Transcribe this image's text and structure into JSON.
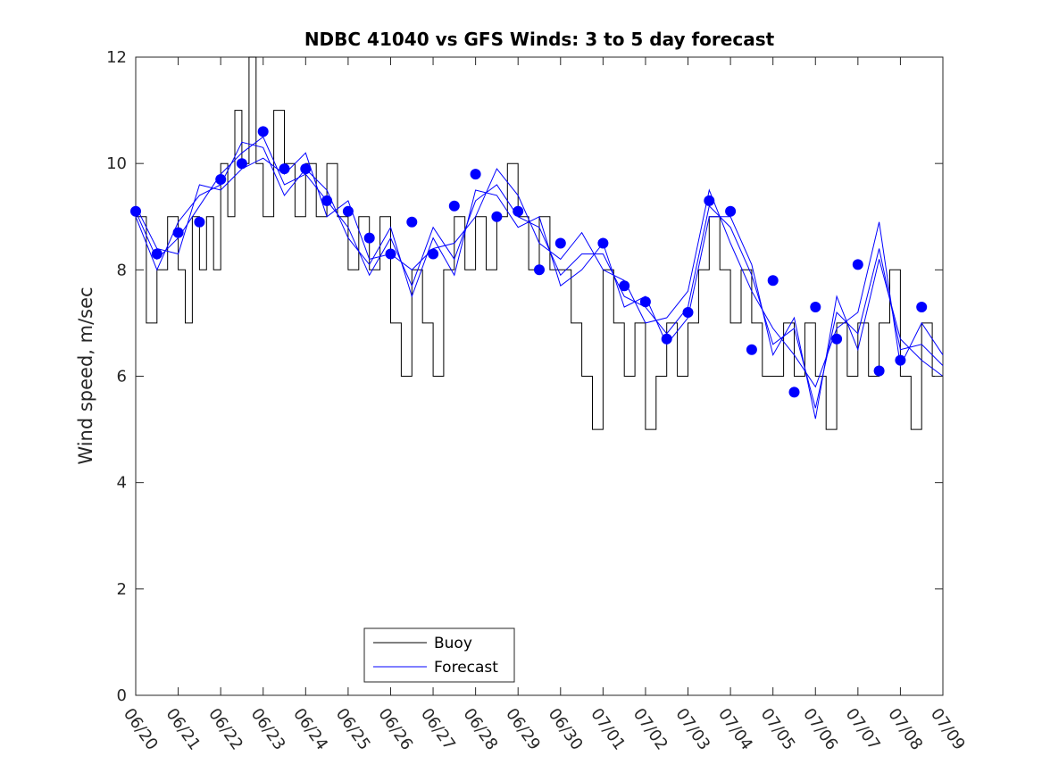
{
  "chart_data": {
    "type": "line",
    "title": "NDBC 41040 vs GFS Winds: 3 to 5 day forecast",
    "xlabel": "",
    "ylabel": "Wind speed, m/sec",
    "ylim": [
      0,
      12
    ],
    "yticks": [
      "0",
      "2",
      "4",
      "6",
      "8",
      "10",
      "12"
    ],
    "xlim": [
      "06/20",
      "07/09"
    ],
    "xticks": [
      "06/20",
      "06/21",
      "06/22",
      "06/23",
      "06/24",
      "06/25",
      "06/26",
      "06/27",
      "06/28",
      "06/29",
      "06/30",
      "07/01",
      "07/02",
      "07/03",
      "07/04",
      "07/05",
      "07/06",
      "07/07",
      "07/08",
      "07/09"
    ],
    "legend": {
      "location": "bottom-left",
      "entries": [
        "Buoy",
        "Forecast"
      ]
    },
    "colors": {
      "buoy": "#000000",
      "forecast": "#0000ff"
    },
    "series": [
      {
        "name": "Buoy",
        "kind": "line",
        "values": [
          [
            "06/20",
            9
          ],
          [
            "06/20",
            7
          ],
          [
            "06/20",
            8
          ],
          [
            "06/20",
            9
          ],
          [
            "06/21",
            8
          ],
          [
            "06/21",
            7
          ],
          [
            "06/21",
            9
          ],
          [
            "06/21",
            8
          ],
          [
            "06/21",
            9
          ],
          [
            "06/21",
            8
          ],
          [
            "06/22",
            10
          ],
          [
            "06/22",
            9
          ],
          [
            "06/22",
            11
          ],
          [
            "06/22",
            10
          ],
          [
            "06/22",
            12
          ],
          [
            "06/22",
            10
          ],
          [
            "06/23",
            9
          ],
          [
            "06/23",
            11
          ],
          [
            "06/23",
            10
          ],
          [
            "06/23",
            9
          ],
          [
            "06/24",
            10
          ],
          [
            "06/24",
            9
          ],
          [
            "06/24",
            10
          ],
          [
            "06/24",
            9
          ],
          [
            "06/25",
            8
          ],
          [
            "06/25",
            9
          ],
          [
            "06/25",
            8
          ],
          [
            "06/25",
            9
          ],
          [
            "06/26",
            7
          ],
          [
            "06/26",
            6
          ],
          [
            "06/26",
            8
          ],
          [
            "06/26",
            7
          ],
          [
            "06/27",
            6
          ],
          [
            "06/27",
            8
          ],
          [
            "06/27",
            9
          ],
          [
            "06/27",
            8
          ],
          [
            "06/28",
            9
          ],
          [
            "06/28",
            8
          ],
          [
            "06/28",
            9
          ],
          [
            "06/28",
            10
          ],
          [
            "06/29",
            9
          ],
          [
            "06/29",
            8
          ],
          [
            "06/29",
            9
          ],
          [
            "06/29",
            8
          ],
          [
            "06/30",
            8
          ],
          [
            "06/30",
            7
          ],
          [
            "06/30",
            6
          ],
          [
            "06/30",
            5
          ],
          [
            "07/01",
            8
          ],
          [
            "07/01",
            7
          ],
          [
            "07/01",
            6
          ],
          [
            "07/01",
            7
          ],
          [
            "07/02",
            5
          ],
          [
            "07/02",
            6
          ],
          [
            "07/02",
            7
          ],
          [
            "07/02",
            6
          ],
          [
            "07/03",
            7
          ],
          [
            "07/03",
            8
          ],
          [
            "07/03",
            9
          ],
          [
            "07/03",
            8
          ],
          [
            "07/04",
            7
          ],
          [
            "07/04",
            8
          ],
          [
            "07/04",
            7
          ],
          [
            "07/04",
            6
          ],
          [
            "07/05",
            6
          ],
          [
            "07/05",
            7
          ],
          [
            "07/05",
            6
          ],
          [
            "07/05",
            7
          ],
          [
            "07/06",
            6
          ],
          [
            "07/06",
            5
          ],
          [
            "07/06",
            7
          ],
          [
            "07/06",
            6
          ],
          [
            "07/07",
            7
          ],
          [
            "07/07",
            6
          ],
          [
            "07/07",
            7
          ],
          [
            "07/07",
            8
          ],
          [
            "07/08",
            6
          ],
          [
            "07/08",
            5
          ],
          [
            "07/08",
            7
          ],
          [
            "07/08",
            6
          ],
          [
            "07/09",
            6
          ]
        ]
      },
      {
        "name": "Forecast",
        "kind": "line",
        "runs": [
          [
            [
              "06/20",
              9.1
            ],
            [
              "06/20",
              8.2
            ],
            [
              "06/21",
              8.6
            ],
            [
              "06/21",
              9.2
            ],
            [
              "06/22",
              9.8
            ],
            [
              "06/22",
              10.2
            ],
            [
              "06/23",
              10.5
            ],
            [
              "06/23",
              9.6
            ],
            [
              "06/24",
              9.8
            ],
            [
              "06/24",
              9.3
            ],
            [
              "06/25",
              8.8
            ],
            [
              "06/25",
              7.9
            ],
            [
              "06/26",
              8.6
            ],
            [
              "06/26",
              7.7
            ],
            [
              "06/27",
              8.8
            ],
            [
              "06/27",
              8.2
            ],
            [
              "06/28",
              9.3
            ],
            [
              "06/28",
              9.6
            ],
            [
              "06/29",
              9.0
            ],
            [
              "06/29",
              8.8
            ],
            [
              "06/30",
              7.9
            ],
            [
              "06/30",
              8.3
            ],
            [
              "07/01",
              8.3
            ],
            [
              "07/01",
              7.5
            ],
            [
              "07/02",
              7.3
            ],
            [
              "07/02",
              6.8
            ],
            [
              "07/03",
              7.3
            ],
            [
              "07/03",
              9.2
            ],
            [
              "07/04",
              8.8
            ],
            [
              "07/04",
              7.9
            ],
            [
              "07/05",
              6.6
            ],
            [
              "07/05",
              6.9
            ],
            [
              "07/06",
              5.4
            ],
            [
              "07/06",
              7.2
            ],
            [
              "07/07",
              6.8
            ],
            [
              "07/07",
              8.4
            ],
            [
              "07/08",
              6.5
            ],
            [
              "07/08",
              6.6
            ],
            [
              "07/09",
              6.2
            ]
          ],
          [
            [
              "06/20",
              9.2
            ],
            [
              "06/20",
              8.4
            ],
            [
              "06/21",
              8.3
            ],
            [
              "06/21",
              9.6
            ],
            [
              "06/22",
              9.5
            ],
            [
              "06/22",
              9.9
            ],
            [
              "06/23",
              10.1
            ],
            [
              "06/23",
              9.8
            ],
            [
              "06/24",
              10.2
            ],
            [
              "06/24",
              9.0
            ],
            [
              "06/25",
              9.3
            ],
            [
              "06/25",
              8.2
            ],
            [
              "06/26",
              8.3
            ],
            [
              "06/26",
              8.0
            ],
            [
              "06/27",
              8.4
            ],
            [
              "06/27",
              8.5
            ],
            [
              "06/28",
              9.0
            ],
            [
              "06/28",
              9.9
            ],
            [
              "06/29",
              9.4
            ],
            [
              "06/29",
              8.5
            ],
            [
              "06/30",
              8.2
            ],
            [
              "06/30",
              8.7
            ],
            [
              "07/01",
              8.0
            ],
            [
              "07/01",
              7.8
            ],
            [
              "07/02",
              7.0
            ],
            [
              "07/02",
              7.1
            ],
            [
              "07/03",
              7.6
            ],
            [
              "07/03",
              9.5
            ],
            [
              "07/04",
              8.5
            ],
            [
              "07/04",
              7.6
            ],
            [
              "07/05",
              6.9
            ],
            [
              "07/05",
              6.4
            ],
            [
              "07/06",
              5.8
            ],
            [
              "07/06",
              6.9
            ],
            [
              "07/07",
              7.2
            ],
            [
              "07/07",
              8.9
            ],
            [
              "07/08",
              6.2
            ],
            [
              "07/08",
              7.0
            ],
            [
              "07/09",
              6.4
            ]
          ],
          [
            [
              "06/20",
              9.0
            ],
            [
              "06/20",
              8.0
            ],
            [
              "06/21",
              8.9
            ],
            [
              "06/21",
              9.4
            ],
            [
              "06/22",
              9.6
            ],
            [
              "06/22",
              10.4
            ],
            [
              "06/23",
              10.3
            ],
            [
              "06/23",
              9.4
            ],
            [
              "06/24",
              9.9
            ],
            [
              "06/24",
              9.5
            ],
            [
              "06/25",
              8.6
            ],
            [
              "06/25",
              8.1
            ],
            [
              "06/26",
              8.8
            ],
            [
              "06/26",
              7.5
            ],
            [
              "06/27",
              8.6
            ],
            [
              "06/27",
              7.9
            ],
            [
              "06/28",
              9.5
            ],
            [
              "06/28",
              9.4
            ],
            [
              "06/29",
              8.8
            ],
            [
              "06/29",
              9.0
            ],
            [
              "06/30",
              7.7
            ],
            [
              "06/30",
              8.0
            ],
            [
              "07/01",
              8.5
            ],
            [
              "07/01",
              7.3
            ],
            [
              "07/02",
              7.5
            ],
            [
              "07/02",
              6.6
            ],
            [
              "07/03",
              7.1
            ],
            [
              "07/03",
              9.0
            ],
            [
              "07/04",
              9.0
            ],
            [
              "07/04",
              8.1
            ],
            [
              "07/05",
              6.4
            ],
            [
              "07/05",
              7.1
            ],
            [
              "07/06",
              5.2
            ],
            [
              "07/06",
              7.5
            ],
            [
              "07/07",
              6.5
            ],
            [
              "07/07",
              8.2
            ],
            [
              "07/08",
              6.7
            ],
            [
              "07/08",
              6.3
            ],
            [
              "07/09",
              6.0
            ]
          ]
        ]
      },
      {
        "name": "",
        "kind": "markers",
        "values": [
          [
            "06/20",
            9.1
          ],
          [
            "06/20",
            8.3
          ],
          [
            "06/21",
            8.7
          ],
          [
            "06/21",
            8.9
          ],
          [
            "06/22",
            9.7
          ],
          [
            "06/22",
            10.0
          ],
          [
            "06/23",
            10.6
          ],
          [
            "06/23",
            9.9
          ],
          [
            "06/24",
            9.9
          ],
          [
            "06/24",
            9.3
          ],
          [
            "06/25",
            9.1
          ],
          [
            "06/25",
            8.6
          ],
          [
            "06/26",
            8.3
          ],
          [
            "06/26",
            8.9
          ],
          [
            "06/27",
            8.3
          ],
          [
            "06/27",
            9.2
          ],
          [
            "06/28",
            9.8
          ],
          [
            "06/28",
            9.0
          ],
          [
            "06/29",
            9.1
          ],
          [
            "06/29",
            8.0
          ],
          [
            "06/30",
            8.5
          ],
          [
            "07/01",
            8.5
          ],
          [
            "07/01",
            7.7
          ],
          [
            "07/02",
            7.4
          ],
          [
            "07/02",
            6.7
          ],
          [
            "07/03",
            7.2
          ],
          [
            "07/03",
            9.3
          ],
          [
            "07/04",
            9.1
          ],
          [
            "07/04",
            6.5
          ],
          [
            "07/05",
            7.8
          ],
          [
            "07/05",
            5.7
          ],
          [
            "07/06",
            7.3
          ],
          [
            "07/06",
            6.7
          ],
          [
            "07/07",
            8.1
          ],
          [
            "07/07",
            6.1
          ],
          [
            "07/08",
            6.3
          ],
          [
            "07/08",
            7.3
          ]
        ]
      }
    ]
  }
}
